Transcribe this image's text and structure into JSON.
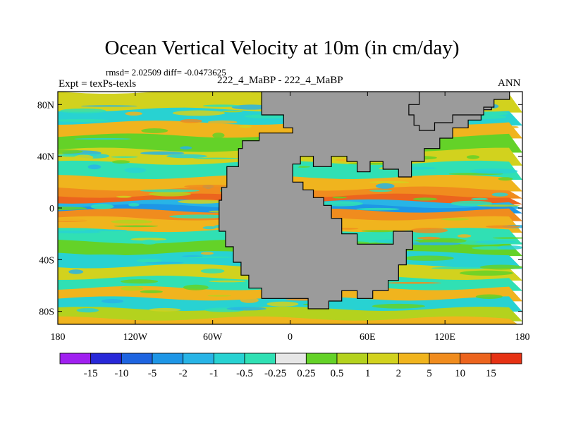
{
  "title": "Ocean Vertical Velocity at 10m (in cm/day)",
  "stats": "rmsd= 2.02509 diff= -0.0473625",
  "experiment": "Expt = texPs-texls",
  "case": "222_4_MaBP - 222_4_MaBP",
  "season": "ANN",
  "chart_data": {
    "type": "heatmap",
    "title": "Ocean Vertical Velocity at 10m (in cm/day)",
    "subtitle": "rmsd= 2.02509 diff= -0.0473625",
    "units": "cm/day",
    "x_ticks": [
      "180",
      "120W",
      "60W",
      "0",
      "60E",
      "120E",
      "180"
    ],
    "x_values": [
      -180,
      -120,
      -60,
      0,
      60,
      120,
      180
    ],
    "y_ticks": [
      "80N",
      "40N",
      "0",
      "40S",
      "80S"
    ],
    "y_values": [
      80,
      40,
      0,
      -40,
      -80
    ],
    "xlim": [
      -180,
      180
    ],
    "ylim": [
      -90,
      90
    ],
    "land_color": "#9b9b9b",
    "colorbar": {
      "labels": [
        "-15",
        "-10",
        "-5",
        "-2",
        "-1",
        "-0.5",
        "-0.25",
        "0.25",
        "0.5",
        "1",
        "2",
        "5",
        "10",
        "15"
      ],
      "colors": [
        "#a020f0",
        "#2828d8",
        "#1e64e0",
        "#1e96e6",
        "#28b4e6",
        "#28d2d2",
        "#30e0b4",
        "#e6e6e6",
        "#64d228",
        "#b4d21e",
        "#d2d21e",
        "#f0b41e",
        "#f08c1e",
        "#ec641e",
        "#e63214"
      ]
    },
    "bands": [
      {
        "lat": 82,
        "value": 1
      },
      {
        "lat": 70,
        "value": -1
      },
      {
        "lat": 62,
        "value": 2
      },
      {
        "lat": 50,
        "value": 0.3
      },
      {
        "lat": 40,
        "value": 1
      },
      {
        "lat": 30,
        "value": -0.5
      },
      {
        "lat": 18,
        "value": 2
      },
      {
        "lat": 12,
        "value": 5
      },
      {
        "lat": 7,
        "value": 10
      },
      {
        "lat": 3,
        "value": -2
      },
      {
        "lat": 0,
        "value": -5
      },
      {
        "lat": -4,
        "value": 5
      },
      {
        "lat": -12,
        "value": 2
      },
      {
        "lat": -22,
        "value": -0.5
      },
      {
        "lat": -30,
        "value": 0.3
      },
      {
        "lat": -40,
        "value": -1
      },
      {
        "lat": -50,
        "value": 1
      },
      {
        "lat": -58,
        "value": -0.5
      },
      {
        "lat": -66,
        "value": 2
      },
      {
        "lat": -74,
        "value": -1
      },
      {
        "lat": -82,
        "value": 0.5
      },
      {
        "lat": -89,
        "value": 2
      }
    ],
    "land": [
      {
        "name": "central-continent",
        "outline": [
          [
            -30,
            90
          ],
          [
            -22,
            90
          ],
          [
            -22,
            72
          ],
          [
            -5,
            72
          ],
          [
            -5,
            62
          ],
          [
            2,
            62
          ],
          [
            2,
            58
          ],
          [
            -24,
            58
          ],
          [
            -24,
            52
          ],
          [
            -37,
            52
          ],
          [
            -37,
            46
          ],
          [
            -40,
            46
          ],
          [
            -40,
            32
          ],
          [
            -49,
            32
          ],
          [
            -49,
            16
          ],
          [
            -53,
            16
          ],
          [
            -53,
            6
          ],
          [
            -55,
            6
          ],
          [
            -55,
            -18
          ],
          [
            -50,
            -18
          ],
          [
            -50,
            -30
          ],
          [
            -44,
            -30
          ],
          [
            -44,
            -42
          ],
          [
            -38,
            -42
          ],
          [
            -38,
            -52
          ],
          [
            -32,
            -52
          ],
          [
            -32,
            -62
          ],
          [
            -22,
            -62
          ],
          [
            -22,
            -70
          ],
          [
            14,
            -70
          ],
          [
            14,
            -78
          ],
          [
            30,
            -78
          ],
          [
            30,
            -72
          ],
          [
            40,
            -72
          ],
          [
            40,
            -64
          ],
          [
            52,
            -64
          ],
          [
            52,
            -70
          ],
          [
            64,
            -70
          ],
          [
            64,
            -64
          ],
          [
            76,
            -64
          ],
          [
            76,
            -56
          ],
          [
            84,
            -56
          ],
          [
            84,
            -44
          ],
          [
            90,
            -44
          ],
          [
            90,
            -32
          ],
          [
            95,
            -32
          ],
          [
            95,
            -18
          ],
          [
            80,
            -18
          ],
          [
            80,
            -28
          ],
          [
            52,
            -28
          ],
          [
            52,
            -20
          ],
          [
            40,
            -20
          ],
          [
            40,
            -8
          ],
          [
            32,
            -8
          ],
          [
            32,
            2
          ],
          [
            26,
            2
          ],
          [
            26,
            8
          ],
          [
            18,
            8
          ],
          [
            18,
            14
          ],
          [
            10,
            14
          ],
          [
            10,
            20
          ],
          [
            2,
            20
          ],
          [
            2,
            34
          ],
          [
            8,
            34
          ],
          [
            8,
            40
          ],
          [
            18,
            40
          ],
          [
            18,
            32
          ],
          [
            32,
            32
          ],
          [
            32,
            40
          ],
          [
            44,
            40
          ],
          [
            44,
            36
          ],
          [
            52,
            36
          ],
          [
            52,
            28
          ],
          [
            62,
            28
          ],
          [
            62,
            36
          ],
          [
            72,
            36
          ],
          [
            72,
            30
          ],
          [
            84,
            30
          ],
          [
            84,
            24
          ],
          [
            94,
            24
          ],
          [
            94,
            36
          ],
          [
            104,
            36
          ],
          [
            104,
            46
          ],
          [
            116,
            46
          ],
          [
            116,
            54
          ],
          [
            126,
            54
          ],
          [
            126,
            62
          ],
          [
            138,
            62
          ],
          [
            138,
            68
          ],
          [
            148,
            68
          ],
          [
            148,
            76
          ],
          [
            156,
            76
          ],
          [
            156,
            82
          ],
          [
            148,
            82
          ],
          [
            148,
            88
          ],
          [
            134,
            88
          ],
          [
            134,
            90
          ],
          [
            -30,
            90
          ]
        ]
      },
      {
        "name": "northeast-land",
        "outline": [
          [
            100,
            60
          ],
          [
            112,
            60
          ],
          [
            112,
            66
          ],
          [
            126,
            66
          ],
          [
            126,
            72
          ],
          [
            150,
            72
          ],
          [
            150,
            78
          ],
          [
            158,
            78
          ],
          [
            158,
            84
          ],
          [
            170,
            84
          ],
          [
            170,
            90
          ],
          [
            100,
            90
          ],
          [
            100,
            80
          ],
          [
            92,
            80
          ],
          [
            92,
            72
          ],
          [
            96,
            72
          ],
          [
            96,
            64
          ],
          [
            100,
            64
          ],
          [
            100,
            60
          ]
        ]
      }
    ]
  }
}
